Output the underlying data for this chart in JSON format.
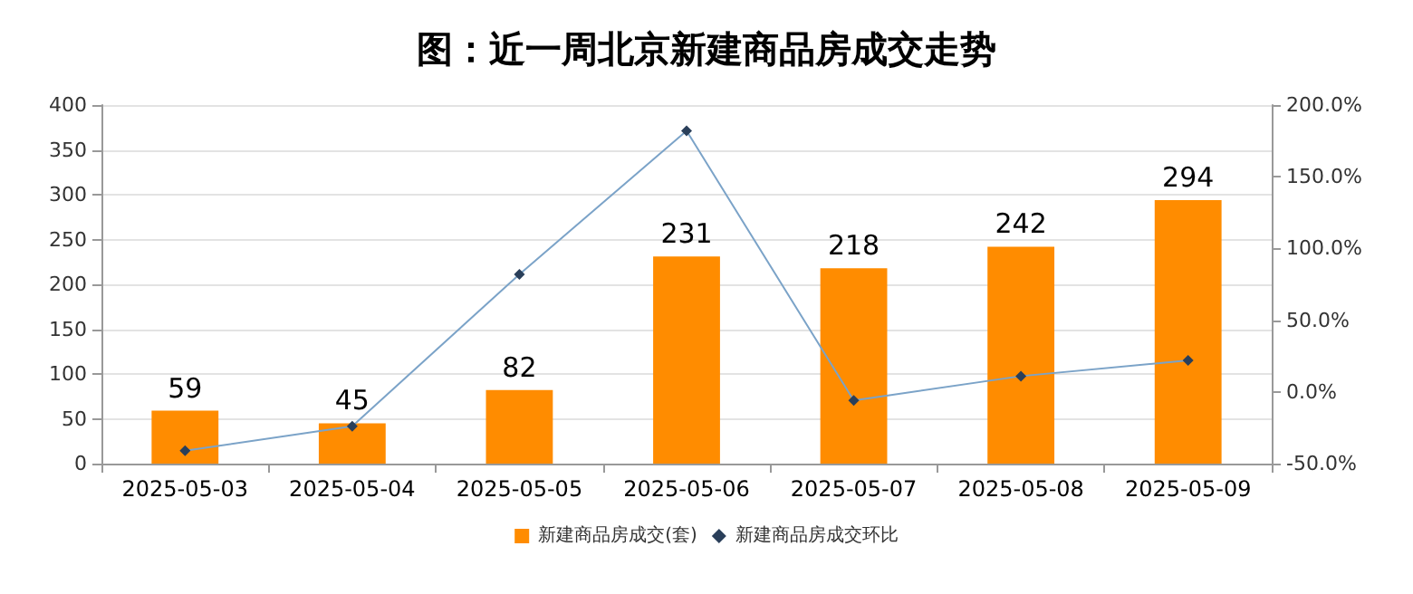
{
  "chart_data": {
    "type": "bar",
    "title": "图：近一周北京新建商品房成交走势",
    "categories": [
      "2025-05-03",
      "2025-05-04",
      "2025-05-05",
      "2025-05-06",
      "2025-05-07",
      "2025-05-08",
      "2025-05-09"
    ],
    "series": [
      {
        "name": "新建商品房成交(套)",
        "color": "#ff8c00",
        "values": [
          59,
          45,
          82,
          231,
          218,
          242,
          294
        ],
        "value_labels": [
          "59",
          "45",
          "82",
          "231",
          "218",
          "242",
          "294"
        ]
      },
      {
        "name": "新建商品房成交环比",
        "type": "line",
        "axis": "y2",
        "color": "#7ba3c8",
        "marker": "diamond",
        "values": [
          -41,
          -24,
          82,
          182,
          -6,
          11,
          22
        ]
      }
    ],
    "ylim": [
      0,
      400
    ],
    "yticks": [
      0,
      50,
      100,
      150,
      200,
      250,
      300,
      350,
      400
    ],
    "y2lim": [
      -50,
      200
    ],
    "y2ticks": [
      {
        "value": -50,
        "label": "-50.0%"
      },
      {
        "value": 0,
        "label": "0.0%"
      },
      {
        "value": 50,
        "label": "50.0%"
      },
      {
        "value": 100,
        "label": "100.0%"
      },
      {
        "value": 150,
        "label": "150.0%"
      },
      {
        "value": 200,
        "label": "200.0%"
      }
    ],
    "grid": "y",
    "legend": "bottom"
  }
}
